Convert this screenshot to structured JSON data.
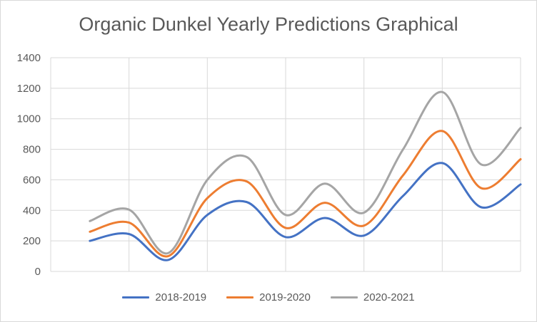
{
  "chart_data": {
    "type": "line",
    "title": "Organic Dunkel Yearly Predictions Graphical",
    "xlabel": "",
    "ylabel": "",
    "ylim": [
      0,
      1400
    ],
    "yticks": [
      0,
      200,
      400,
      600,
      800,
      1000,
      1200,
      1400
    ],
    "grid": true,
    "legend": "bottom",
    "x": [
      1,
      2,
      3,
      4,
      5,
      6,
      7,
      8,
      9,
      10,
      11,
      12
    ],
    "series": [
      {
        "name": "2018-2019",
        "color": "#4472c4",
        "values": [
          200,
          245,
          75,
          370,
          455,
          225,
          350,
          235,
          495,
          710,
          420,
          570
        ]
      },
      {
        "name": "2019-2020",
        "color": "#ed7d31",
        "values": [
          260,
          320,
          100,
          480,
          590,
          285,
          450,
          300,
          630,
          920,
          545,
          735
        ]
      },
      {
        "name": "2020-2021",
        "color": "#a5a5a5",
        "values": [
          330,
          405,
          120,
          600,
          750,
          370,
          575,
          385,
          800,
          1175,
          700,
          940
        ]
      }
    ]
  }
}
